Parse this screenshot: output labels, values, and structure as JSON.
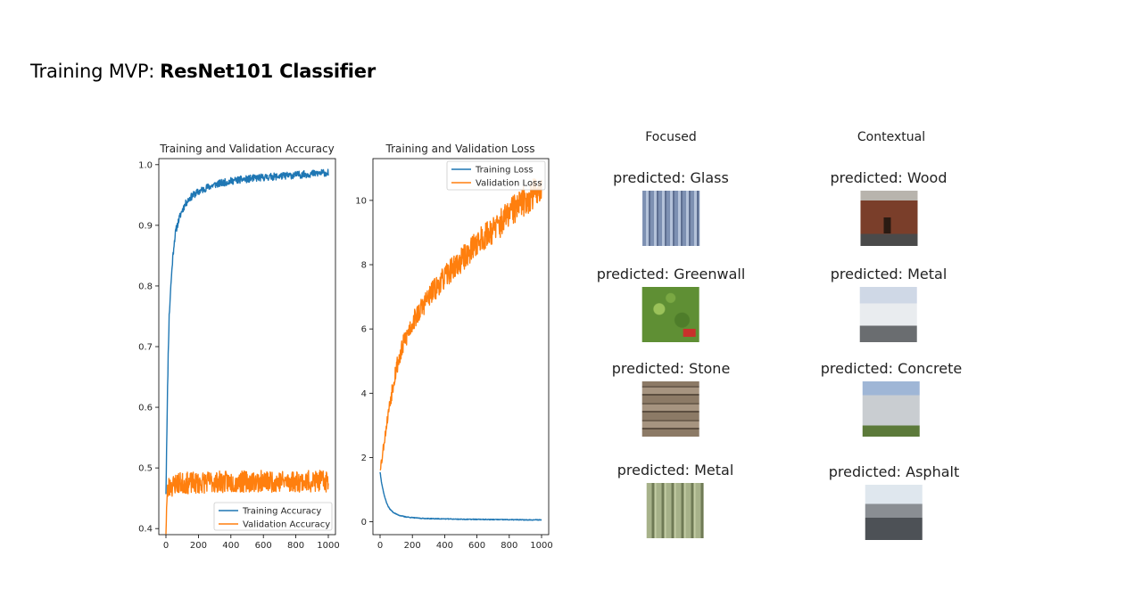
{
  "slide": {
    "title_prefix": "Training MVP:",
    "title_strong": "ResNet101 Classifier"
  },
  "chart_data": [
    {
      "type": "line",
      "title": "Training and Validation Accuracy",
      "xlabel": "",
      "ylabel": "",
      "xlim": [
        0,
        1000
      ],
      "ylim": [
        0.39,
        1.01
      ],
      "xticks": [
        0,
        200,
        400,
        600,
        800,
        1000
      ],
      "yticks": [
        0.4,
        0.5,
        0.6,
        0.7,
        0.8,
        0.9,
        1.0
      ],
      "ytick_labels": [
        "0.4",
        "0.5",
        "0.6",
        "0.7",
        "0.8",
        "0.9",
        "1.0"
      ],
      "legend_position": "bottom-right",
      "series": [
        {
          "name": "Training Accuracy",
          "color": "#1f77b4",
          "x": [
            0,
            5,
            10,
            15,
            20,
            30,
            40,
            50,
            60,
            70,
            80,
            100,
            120,
            140,
            160,
            180,
            200,
            250,
            300,
            350,
            400,
            450,
            500,
            550,
            600,
            650,
            700,
            750,
            800,
            850,
            900,
            950,
            1000
          ],
          "y": [
            0.46,
            0.55,
            0.63,
            0.7,
            0.75,
            0.8,
            0.84,
            0.87,
            0.89,
            0.9,
            0.91,
            0.925,
            0.935,
            0.943,
            0.948,
            0.952,
            0.955,
            0.962,
            0.967,
            0.97,
            0.973,
            0.975,
            0.976,
            0.978,
            0.979,
            0.98,
            0.981,
            0.982,
            0.983,
            0.984,
            0.985,
            0.986,
            0.987
          ]
        },
        {
          "name": "Validation Accuracy",
          "color": "#ff7f0e",
          "x": [
            0,
            5,
            10,
            20,
            40,
            60,
            80,
            100,
            150,
            200,
            250,
            300,
            350,
            400,
            450,
            500,
            550,
            600,
            650,
            700,
            750,
            800,
            850,
            900,
            950,
            1000
          ],
          "y": [
            0.4,
            0.44,
            0.46,
            0.47,
            0.47,
            0.475,
            0.475,
            0.475,
            0.475,
            0.475,
            0.477,
            0.477,
            0.477,
            0.477,
            0.477,
            0.478,
            0.478,
            0.478,
            0.478,
            0.478,
            0.478,
            0.478,
            0.478,
            0.478,
            0.478,
            0.478
          ]
        }
      ]
    },
    {
      "type": "line",
      "title": "Training and Validation Loss",
      "xlabel": "",
      "ylabel": "",
      "xlim": [
        0,
        1000
      ],
      "ylim": [
        -0.4,
        11.3
      ],
      "xticks": [
        0,
        200,
        400,
        600,
        800,
        1000
      ],
      "yticks": [
        0,
        2,
        4,
        6,
        8,
        10
      ],
      "legend_position": "top-right",
      "series": [
        {
          "name": "Training Loss",
          "color": "#1f77b4",
          "x": [
            0,
            10,
            20,
            30,
            40,
            50,
            60,
            80,
            100,
            120,
            150,
            200,
            250,
            300,
            400,
            500,
            600,
            700,
            800,
            900,
            1000
          ],
          "y": [
            1.55,
            1.2,
            0.95,
            0.75,
            0.6,
            0.48,
            0.4,
            0.3,
            0.24,
            0.2,
            0.16,
            0.13,
            0.11,
            0.1,
            0.09,
            0.08,
            0.075,
            0.07,
            0.065,
            0.06,
            0.06
          ]
        },
        {
          "name": "Validation Loss",
          "color": "#ff7f0e",
          "x": [
            0,
            10,
            20,
            40,
            60,
            80,
            100,
            150,
            200,
            250,
            300,
            350,
            400,
            450,
            500,
            550,
            600,
            650,
            700,
            750,
            800,
            850,
            900,
            950,
            1000
          ],
          "y": [
            1.7,
            1.9,
            2.3,
            3.0,
            3.7,
            4.3,
            4.8,
            5.6,
            6.2,
            6.6,
            7.0,
            7.3,
            7.6,
            7.9,
            8.1,
            8.4,
            8.7,
            8.9,
            9.1,
            9.3,
            9.6,
            9.8,
            10.0,
            10.2,
            10.4
          ]
        }
      ]
    }
  ],
  "predictions": {
    "focused_header": "Focused",
    "contextual_header": "Contextual",
    "focused": [
      {
        "label": "predicted: Glass"
      },
      {
        "label": "predicted: Greenwall"
      },
      {
        "label": "predicted: Stone"
      },
      {
        "label": "predicted: Metal"
      }
    ],
    "contextual": [
      {
        "label": "predicted: Wood"
      },
      {
        "label": "predicted: Metal"
      },
      {
        "label": "predicted: Concrete"
      },
      {
        "label": "predicted: Asphalt"
      }
    ]
  }
}
